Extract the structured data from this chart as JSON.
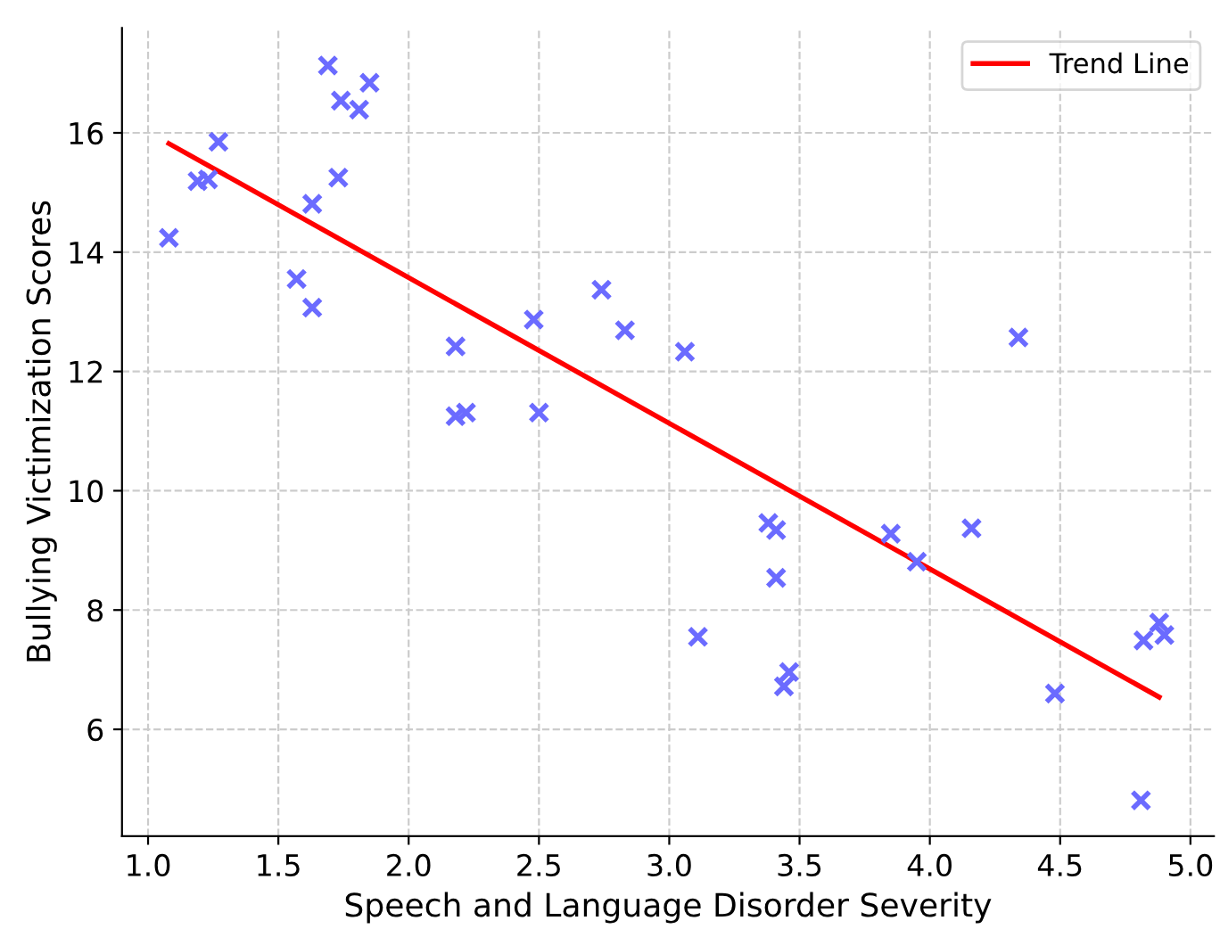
{
  "chart_data": {
    "type": "scatter",
    "xlabel": "Speech and Language Disorder Severity",
    "ylabel": "Bullying Victimization Scores",
    "xlim": [
      0.9,
      5.09
    ],
    "ylim": [
      4.21,
      17.76
    ],
    "xticks": [
      {
        "value": 1.0,
        "label": "1.0"
      },
      {
        "value": 1.5,
        "label": "1.5"
      },
      {
        "value": 2.0,
        "label": "2.0"
      },
      {
        "value": 2.5,
        "label": "2.5"
      },
      {
        "value": 3.0,
        "label": "3.0"
      },
      {
        "value": 3.5,
        "label": "3.5"
      },
      {
        "value": 4.0,
        "label": "4.0"
      },
      {
        "value": 4.5,
        "label": "4.5"
      },
      {
        "value": 5.0,
        "label": "5.0"
      }
    ],
    "yticks": [
      6,
      8,
      10,
      12,
      14,
      16
    ],
    "grid": true,
    "legend": "top right",
    "series": [
      {
        "marker": "cross",
        "color": "#6b6bff",
        "x": [
          1.08,
          1.19,
          1.23,
          1.27,
          1.57,
          1.63,
          1.63,
          1.69,
          1.73,
          1.74,
          1.81,
          1.85,
          2.18,
          2.18,
          2.22,
          2.48,
          2.5,
          2.74,
          2.83,
          3.06,
          3.11,
          3.38,
          3.41,
          3.41,
          3.44,
          3.46,
          3.85,
          3.95,
          4.16,
          4.34,
          4.48,
          4.81,
          4.82,
          4.88,
          4.9
        ],
        "values": [
          14.24,
          15.19,
          15.22,
          15.85,
          13.55,
          13.07,
          14.81,
          17.13,
          15.25,
          16.54,
          16.39,
          16.84,
          12.42,
          11.25,
          11.31,
          12.87,
          11.31,
          13.37,
          12.69,
          12.33,
          7.55,
          9.46,
          9.34,
          8.54,
          6.72,
          6.96,
          9.28,
          8.81,
          9.37,
          12.57,
          6.6,
          4.81,
          7.49,
          7.79,
          7.58
        ]
      },
      {
        "type": "line",
        "name": "Trend Line",
        "color": "#ff0000",
        "line_style": "solid",
        "marker": "none",
        "x": [
          1.08,
          4.88
        ],
        "values": [
          15.82,
          6.54
        ]
      }
    ]
  }
}
